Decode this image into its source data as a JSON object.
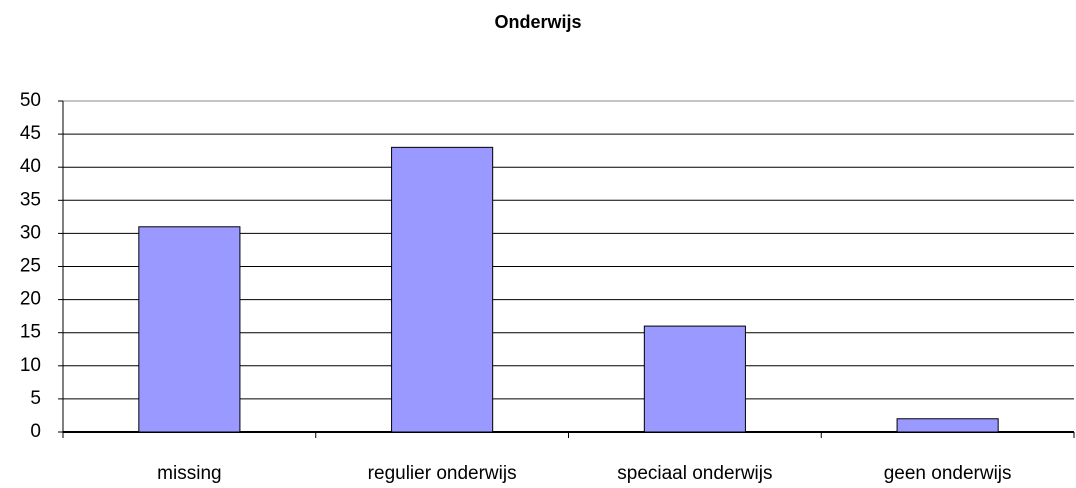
{
  "chart_data": {
    "type": "bar",
    "title": "Onderwijs",
    "categories": [
      "missing",
      "regulier onderwijs",
      "speciaal onderwijs",
      "geen onderwijs"
    ],
    "values": [
      31,
      43,
      16,
      2
    ],
    "color": "#9999ff",
    "ylim": [
      0,
      50
    ],
    "yticks": [
      0,
      5,
      10,
      15,
      20,
      25,
      30,
      35,
      40,
      45,
      50
    ],
    "grid": true
  }
}
